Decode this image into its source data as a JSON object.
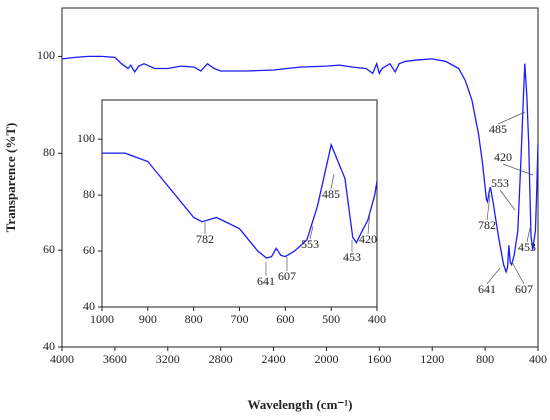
{
  "chart_data": [
    {
      "type": "line",
      "x_label": "Wavelength (cm⁻¹)",
      "y_label": "Transparence (%T)",
      "xlim": [
        4000,
        400
      ],
      "xticks": [
        4000,
        3600,
        3200,
        2800,
        2400,
        2000,
        1600,
        1200,
        800,
        400
      ],
      "ylim": [
        40,
        110
      ],
      "yticks": [
        40,
        60,
        80,
        100
      ],
      "series": [
        {
          "color": "#1a1aff",
          "x": [
            4000,
            3900,
            3800,
            3700,
            3600,
            3550,
            3500,
            3480,
            3450,
            3420,
            3380,
            3300,
            3200,
            3100,
            3000,
            2950,
            2900,
            2850,
            2800,
            2600,
            2400,
            2300,
            2200,
            2000,
            1900,
            1800,
            1700,
            1650,
            1620,
            1600,
            1580,
            1520,
            1480,
            1450,
            1400,
            1300,
            1200,
            1100,
            1000,
            950,
            900,
            850,
            820,
            800,
            790,
            782,
            770,
            760,
            740,
            700,
            660,
            641,
            630,
            620,
            610,
            600,
            580,
            553,
            530,
            510,
            500,
            485,
            470,
            453,
            440,
            430,
            420,
            410,
            400
          ],
          "values": [
            99.5,
            99.8,
            100,
            100,
            99.8,
            98.5,
            97.5,
            98.2,
            96.8,
            98,
            98.5,
            97.5,
            97.5,
            98,
            97.8,
            97,
            98.5,
            97.5,
            97,
            97,
            97.2,
            97.5,
            97.8,
            98,
            98.2,
            97.8,
            97.5,
            96.5,
            98.5,
            96.5,
            97.5,
            98.5,
            96.8,
            98.5,
            99,
            99.3,
            99.5,
            99,
            97.5,
            95,
            91,
            84,
            78,
            73,
            70.5,
            70,
            72,
            73,
            70,
            63,
            57,
            55.5,
            56.5,
            61,
            57.5,
            57,
            59,
            64,
            78,
            92,
            98.5,
            92,
            82,
            63,
            60,
            62,
            64,
            72,
            82
          ]
        }
      ],
      "annotations": [
        "485",
        "420",
        "553",
        "782",
        "641",
        "607",
        "453"
      ]
    },
    {
      "type": "line",
      "xlim": [
        1000,
        400
      ],
      "xticks": [
        1000,
        900,
        800,
        700,
        600,
        500,
        400
      ],
      "ylim": [
        40,
        114
      ],
      "yticks": [
        40,
        60,
        80,
        100
      ],
      "series": [
        {
          "color": "#1a1aff",
          "x": [
            1000,
            950,
            900,
            850,
            800,
            782,
            750,
            700,
            660,
            641,
            630,
            620,
            610,
            600,
            580,
            553,
            530,
            500,
            485,
            470,
            453,
            445,
            430,
            420,
            405,
            400
          ],
          "values": [
            95,
            95,
            92,
            82,
            72,
            70.5,
            72,
            68,
            60,
            57.5,
            58,
            61,
            58.5,
            58,
            60,
            64,
            76,
            98,
            92,
            86,
            65,
            63,
            68,
            71,
            80,
            85
          ]
        }
      ],
      "annotations": [
        "782",
        "641",
        "607",
        "553",
        "485",
        "453",
        "420"
      ]
    }
  ]
}
